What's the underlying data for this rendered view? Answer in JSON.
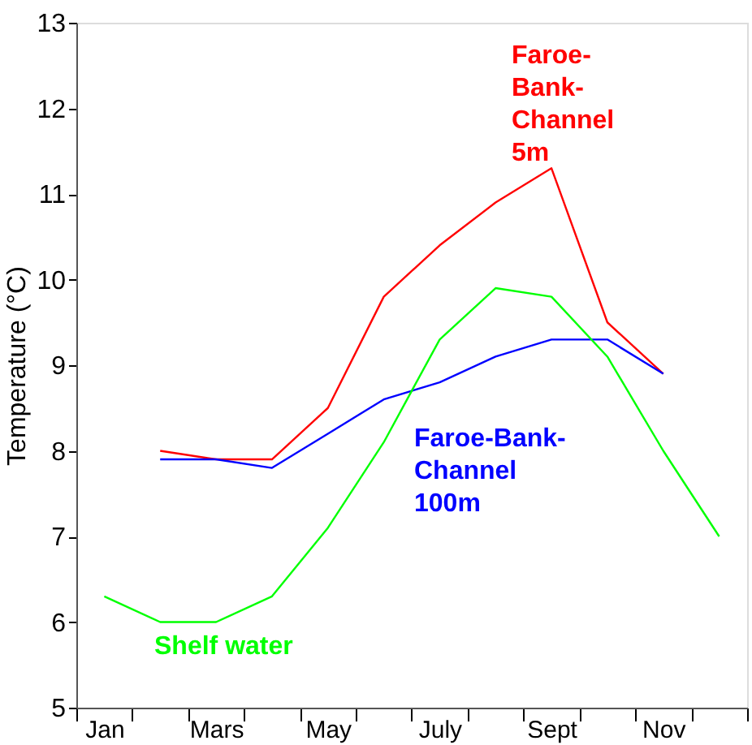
{
  "chart_data": {
    "type": "line",
    "ylabel": "Temperature (°C)",
    "categories": [
      "Jan",
      null,
      "Mars",
      null,
      "May",
      null,
      "July",
      null,
      "Sept",
      null,
      "Nov",
      null
    ],
    "ylim": [
      5,
      13
    ],
    "yticks": [
      5,
      6,
      7,
      8,
      9,
      10,
      11,
      12,
      13
    ],
    "grid": false,
    "marker": "none",
    "line_style": "solid",
    "series": [
      {
        "name": "Faroe-Bank-Channel 5m",
        "color": "#ff0000",
        "values": [
          null,
          8.0,
          7.9,
          7.9,
          8.5,
          9.8,
          10.4,
          10.9,
          11.3,
          9.5,
          8.9,
          null
        ]
      },
      {
        "name": "Faroe-Bank-Channel 100m",
        "color": "#0000ff",
        "values": [
          null,
          7.9,
          7.9,
          7.8,
          8.2,
          8.6,
          8.8,
          9.1,
          9.3,
          9.3,
          8.9,
          null
        ]
      },
      {
        "name": "Shelf water",
        "color": "#00ff00",
        "values": [
          6.3,
          6.0,
          6.0,
          6.3,
          7.1,
          8.1,
          9.3,
          9.9,
          9.8,
          9.1,
          8.0,
          7.0
        ]
      }
    ]
  }
}
